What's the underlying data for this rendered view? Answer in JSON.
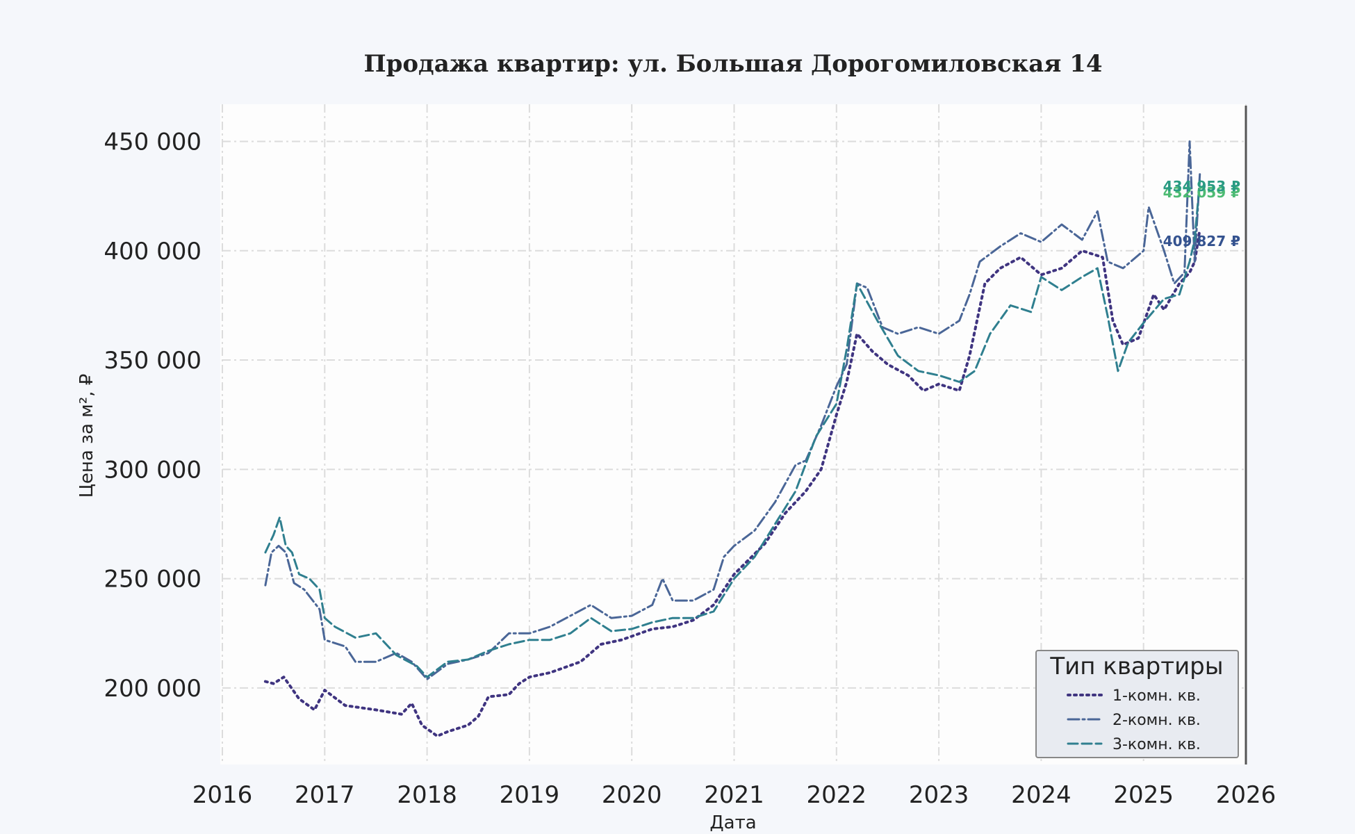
{
  "chart_data": {
    "type": "line",
    "title": "Продажа квартир: ул. Большая Дорогомиловская 14",
    "xlabel": "Дата",
    "ylabel": "Цена за м², ₽",
    "xlim": [
      2016,
      2026
    ],
    "ylim": [
      165000,
      467000
    ],
    "x_ticks": [
      2016,
      2017,
      2018,
      2019,
      2020,
      2021,
      2022,
      2023,
      2024,
      2025,
      2026
    ],
    "x_tick_labels": [
      "2016",
      "2017",
      "2018",
      "2019",
      "2020",
      "2021",
      "2022",
      "2023",
      "2024",
      "2025",
      "2026"
    ],
    "y_ticks": [
      200000,
      250000,
      300000,
      350000,
      400000,
      450000
    ],
    "y_tick_labels": [
      "200 000",
      "250 000",
      "300 000",
      "350 000",
      "400 000",
      "450 000"
    ],
    "grid": true,
    "legend_title": "Тип квартиры",
    "legend_position": "lower-right",
    "series": [
      {
        "name": "1-комн. кв.",
        "color": "#3f3480",
        "style": "dotted",
        "x": [
          2016.42,
          2016.5,
          2016.6,
          2016.75,
          2016.9,
          2017.0,
          2017.2,
          2017.5,
          2017.75,
          2017.85,
          2017.95,
          2018.1,
          2018.2,
          2018.4,
          2018.5,
          2018.6,
          2018.8,
          2018.9,
          2019.0,
          2019.2,
          2019.5,
          2019.7,
          2019.9,
          2020.2,
          2020.4,
          2020.6,
          2020.8,
          2021.0,
          2021.3,
          2021.5,
          2021.7,
          2021.85,
          2022.0,
          2022.1,
          2022.2,
          2022.35,
          2022.5,
          2022.7,
          2022.85,
          2023.0,
          2023.2,
          2023.3,
          2023.45,
          2023.6,
          2023.8,
          2024.0,
          2024.2,
          2024.4,
          2024.6,
          2024.7,
          2024.8,
          2024.95,
          2025.1,
          2025.2,
          2025.35,
          2025.45,
          2025.5,
          2025.55
        ],
        "y": [
          203000,
          202000,
          205000,
          195000,
          190000,
          199000,
          192000,
          190000,
          188000,
          193000,
          183000,
          178000,
          180000,
          183000,
          187000,
          196000,
          197000,
          202000,
          205000,
          207000,
          212000,
          220000,
          222000,
          227000,
          228000,
          231000,
          238000,
          252000,
          266000,
          280000,
          290000,
          300000,
          325000,
          340000,
          362000,
          354000,
          348000,
          343000,
          336000,
          339000,
          336000,
          352000,
          385000,
          392000,
          397000,
          389000,
          392000,
          400000,
          397000,
          368000,
          357000,
          360000,
          380000,
          373000,
          385000,
          390000,
          395000,
          409827
        ]
      },
      {
        "name": "2-комн. кв.",
        "color": "#4a6697",
        "style": "dash-dot",
        "x": [
          2016.42,
          2016.48,
          2016.55,
          2016.62,
          2016.7,
          2016.8,
          2016.95,
          2017.0,
          2017.2,
          2017.3,
          2017.5,
          2017.7,
          2017.85,
          2018.0,
          2018.2,
          2018.4,
          2018.6,
          2018.8,
          2019.0,
          2019.2,
          2019.4,
          2019.6,
          2019.8,
          2020.0,
          2020.2,
          2020.3,
          2020.4,
          2020.6,
          2020.8,
          2020.9,
          2021.0,
          2021.2,
          2021.4,
          2021.6,
          2021.7,
          2021.85,
          2022.0,
          2022.1,
          2022.2,
          2022.3,
          2022.45,
          2022.6,
          2022.8,
          2023.0,
          2023.2,
          2023.3,
          2023.4,
          2023.6,
          2023.8,
          2024.0,
          2024.2,
          2024.4,
          2024.55,
          2024.65,
          2024.8,
          2025.0,
          2025.05,
          2025.2,
          2025.3,
          2025.4,
          2025.45,
          2025.5,
          2025.55
        ],
        "y": [
          247000,
          262000,
          265000,
          262000,
          248000,
          245000,
          236000,
          222000,
          219000,
          212000,
          212000,
          216000,
          212000,
          204000,
          211000,
          213000,
          216000,
          225000,
          225000,
          228000,
          233000,
          238000,
          232000,
          233000,
          238000,
          250000,
          240000,
          240000,
          245000,
          260000,
          265000,
          272000,
          285000,
          302000,
          304000,
          320000,
          338000,
          348000,
          385000,
          383000,
          365000,
          362000,
          365000,
          362000,
          368000,
          380000,
          395000,
          402000,
          408000,
          404000,
          412000,
          405000,
          418000,
          395000,
          392000,
          400000,
          420000,
          400000,
          385000,
          390000,
          450000,
          395000,
          434953
        ]
      },
      {
        "name": "3-комн. кв.",
        "color": "#2f7f8f",
        "style": "dashed",
        "x": [
          2016.42,
          2016.5,
          2016.56,
          2016.62,
          2016.68,
          2016.75,
          2016.85,
          2016.95,
          2017.0,
          2017.1,
          2017.3,
          2017.5,
          2017.7,
          2017.9,
          2018.0,
          2018.2,
          2018.4,
          2018.6,
          2018.8,
          2019.0,
          2019.2,
          2019.4,
          2019.6,
          2019.8,
          2020.0,
          2020.2,
          2020.4,
          2020.6,
          2020.8,
          2021.0,
          2021.2,
          2021.4,
          2021.6,
          2021.8,
          2022.0,
          2022.1,
          2022.2,
          2022.4,
          2022.6,
          2022.8,
          2023.0,
          2023.2,
          2023.35,
          2023.5,
          2023.7,
          2023.9,
          2024.0,
          2024.2,
          2024.4,
          2024.55,
          2024.65,
          2024.75,
          2024.85,
          2025.0,
          2025.2,
          2025.35,
          2025.45,
          2025.5,
          2025.55
        ],
        "y": [
          262000,
          270000,
          278000,
          265000,
          262000,
          252000,
          250000,
          245000,
          232000,
          228000,
          223000,
          225000,
          215000,
          210000,
          205000,
          212000,
          213000,
          217000,
          220000,
          222000,
          222000,
          225000,
          232000,
          226000,
          227000,
          230000,
          232000,
          232000,
          235000,
          250000,
          260000,
          275000,
          290000,
          315000,
          330000,
          355000,
          385000,
          368000,
          352000,
          345000,
          343000,
          340000,
          345000,
          362000,
          375000,
          372000,
          388000,
          382000,
          388000,
          392000,
          370000,
          345000,
          358000,
          367000,
          378000,
          380000,
          395000,
          405000,
          432059
        ]
      }
    ],
    "end_labels": [
      {
        "text": "432 059 ₽",
        "color": "#4dbb73",
        "value": 432059
      },
      {
        "text": "434 953 ₽",
        "color": "#2a9b83",
        "value": 434953
      },
      {
        "text": "409 827 ₽",
        "color": "#34528f",
        "value": 409827
      }
    ]
  }
}
